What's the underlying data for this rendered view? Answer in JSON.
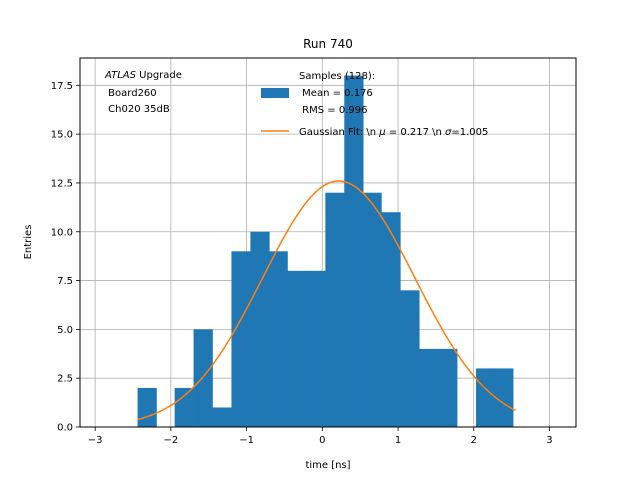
{
  "chart_data": {
    "type": "bar",
    "title": "Run 740",
    "xlabel": "time [ns]",
    "ylabel": "Entries",
    "xlim": [
      -3.2,
      3.35
    ],
    "ylim": [
      0,
      18.9
    ],
    "grid": true,
    "xticks": [
      "−3",
      "−2",
      "−1",
      "0",
      "1",
      "2",
      "3"
    ],
    "xtick_values": [
      -3,
      -2,
      -1,
      0,
      1,
      2,
      3
    ],
    "yticks": [
      "0.0",
      "2.5",
      "5.0",
      "7.5",
      "10.0",
      "12.5",
      "15.0",
      "17.5"
    ],
    "ytick_values": [
      0,
      2.5,
      5,
      7.5,
      10,
      12.5,
      15,
      17.5
    ],
    "bin_edges": [
      -2.44,
      -2.19,
      -1.95,
      -1.7,
      -1.45,
      -1.2,
      -0.95,
      -0.7,
      -0.46,
      -0.21,
      0.04,
      0.29,
      0.54,
      0.78,
      1.03,
      1.28,
      1.53,
      1.78,
      2.03,
      2.27,
      2.52
    ],
    "bin_counts": [
      2,
      0,
      2,
      5,
      1,
      9,
      10,
      9,
      8,
      8,
      12,
      18,
      12,
      11,
      7,
      4,
      4,
      0,
      3,
      3
    ],
    "bar_color": "#1f77b4",
    "fit": {
      "label": "Gaussian Fit: \\n $\\mu$ = 0.217 \\n $\\sigma$=1.005",
      "label_parts": [
        "Gaussian Fit: \\n ",
        "μ",
        " = 0.217 \\n ",
        "σ",
        "=1.005"
      ],
      "mu": 0.217,
      "sigma": 1.005,
      "amplitude": 12.6,
      "x_range": [
        -2.44,
        2.55
      ],
      "color": "#ff7f0e"
    },
    "legend": {
      "placement": "top-right",
      "hist_label_lines": [
        "Samples (128):",
        " Mean = 0.176",
        " RMS = 0.996"
      ]
    },
    "annotation": {
      "italic": "ATLAS",
      "rest": " Upgrade",
      "lines": [
        " Board260",
        " Ch020 35dB"
      ]
    }
  }
}
